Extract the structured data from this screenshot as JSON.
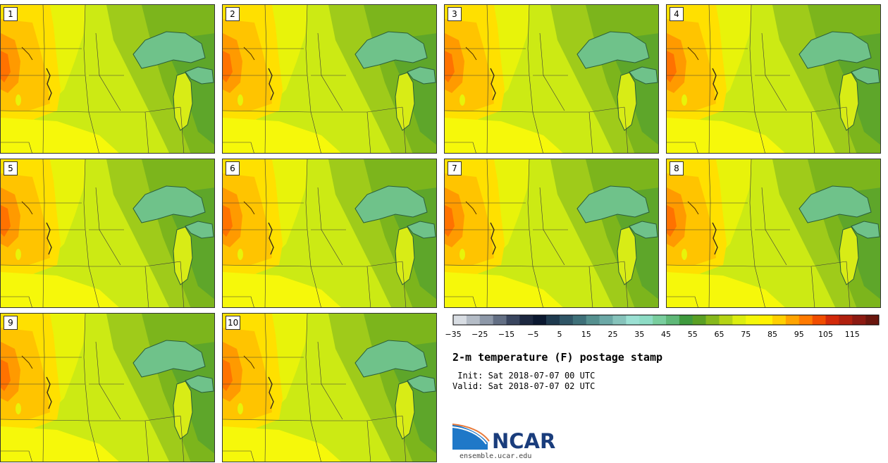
{
  "panels": [
    {
      "label": "1"
    },
    {
      "label": "2"
    },
    {
      "label": "3"
    },
    {
      "label": "4"
    },
    {
      "label": "5"
    },
    {
      "label": "6"
    },
    {
      "label": "7"
    },
    {
      "label": "8"
    },
    {
      "label": "9"
    },
    {
      "label": "10"
    }
  ],
  "colorbar": {
    "colors": [
      "#d8dde3",
      "#b4bcc6",
      "#8d98a8",
      "#636f84",
      "#3a465f",
      "#1d2840",
      "#0b1830",
      "#1f3a4f",
      "#2f5566",
      "#3e7079",
      "#55908f",
      "#6ba8a6",
      "#86c3bb",
      "#9be0d3",
      "#8ddcc5",
      "#79ce9e",
      "#5fb878",
      "#3f9a3e",
      "#5aa024",
      "#86b81c",
      "#b5d415",
      "#dcee10",
      "#f4f70a",
      "#fff200",
      "#ffd000",
      "#ffa400",
      "#ff7a00",
      "#f14d00",
      "#d2290a",
      "#b0200e",
      "#8c1a12",
      "#6a160e"
    ],
    "ticks": [
      "−35",
      "−25",
      "−15",
      "−5",
      "5",
      "15",
      "25",
      "35",
      "45",
      "55",
      "65",
      "75",
      "85",
      "95",
      "105",
      "115"
    ]
  },
  "title": "2-m temperature (F) postage stamp",
  "init_line": " Init: Sat 2018-07-07 00 UTC",
  "valid_line": "Valid: Sat 2018-07-07 02 UTC",
  "logo": {
    "text": "NCAR",
    "url": "ensemble.ucar.edu"
  }
}
